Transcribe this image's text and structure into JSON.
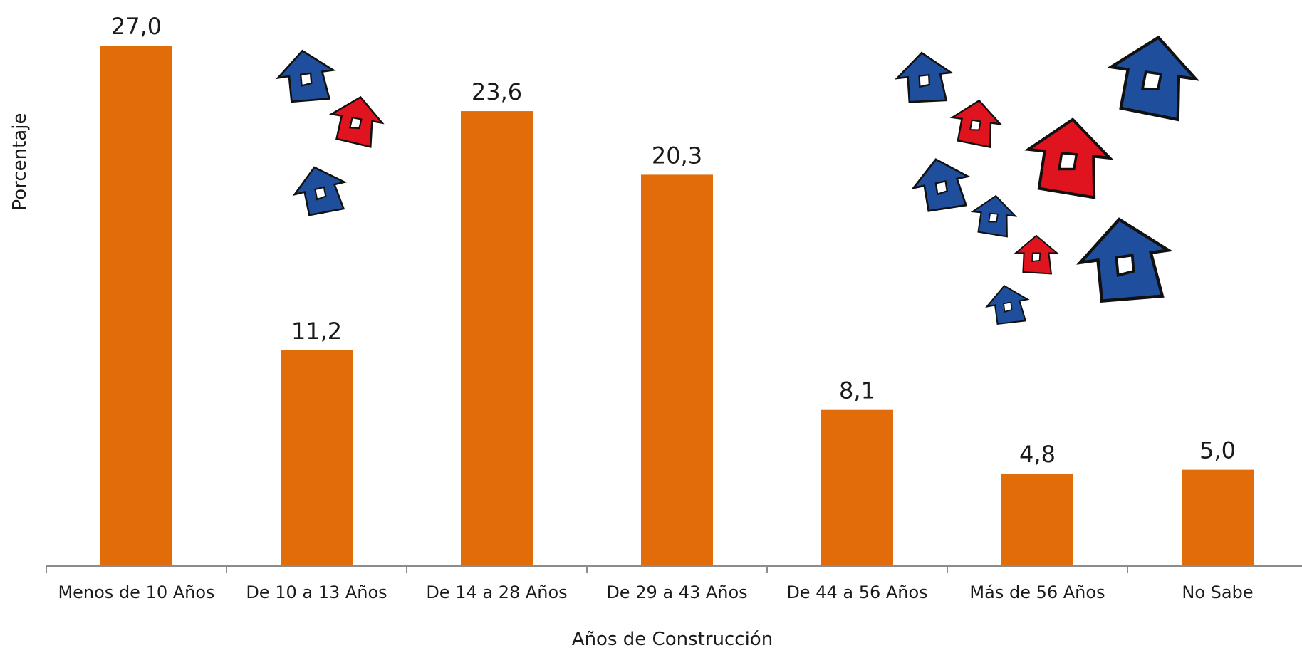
{
  "chart_data": {
    "type": "bar",
    "categories": [
      "Menos de 10 Años",
      "De 10 a 13 Años",
      "De 14 a 28 Años",
      "De 29 a 43 Años",
      "De 44 a 56 Años",
      "Más de 56 Años",
      "No Sabe"
    ],
    "values": [
      27.0,
      11.2,
      23.6,
      20.3,
      8.1,
      4.8,
      5.0
    ],
    "data_labels": [
      "27,0",
      "11,2",
      "23,6",
      "20,3",
      "8,1",
      "4,8",
      "5,0"
    ],
    "xlabel": "Años de Construcción",
    "ylabel": "Porcentaje",
    "ylim": [
      0,
      27.0
    ],
    "grid": false,
    "legend": "none",
    "bar_color": "#E36C0A"
  },
  "decoration": {
    "house_blue": "#1F4E9C",
    "house_red": "#E0141E",
    "icon": "house-icon"
  }
}
